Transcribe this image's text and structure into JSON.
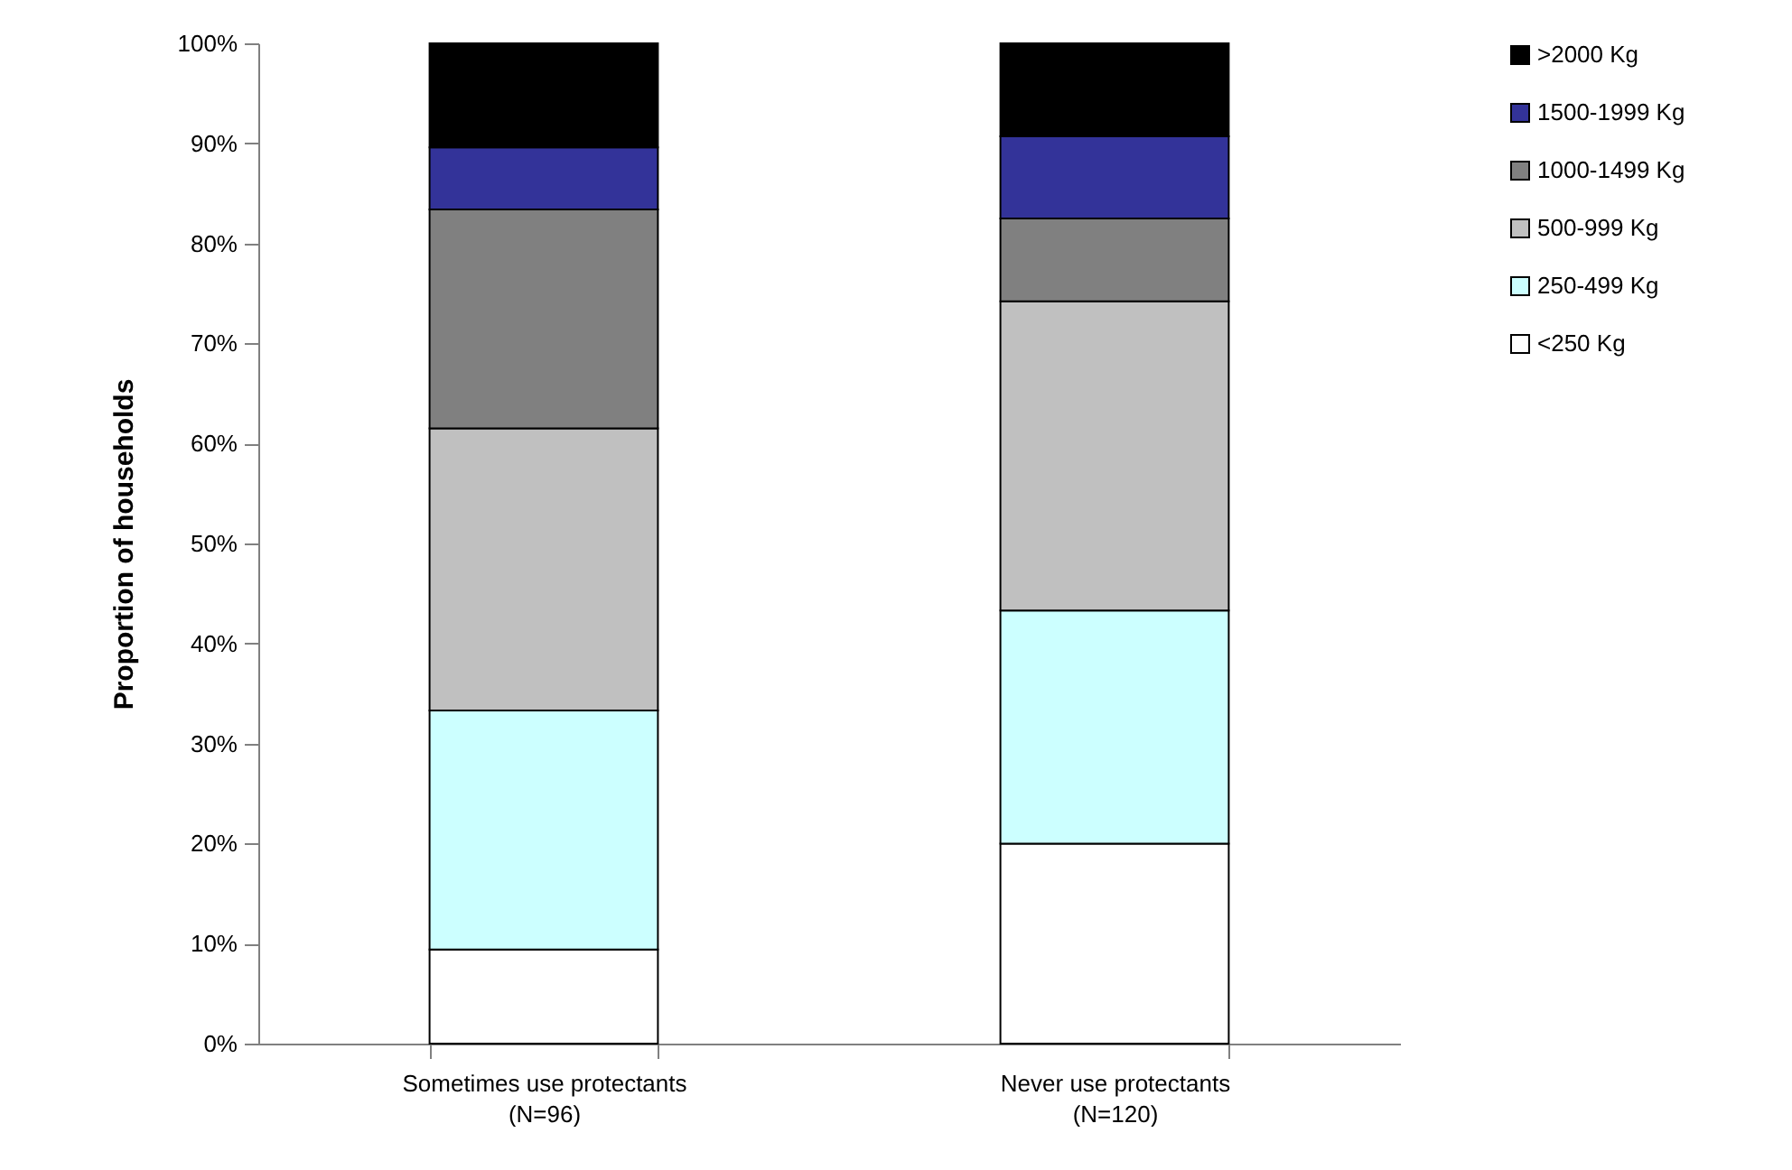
{
  "chart_data": {
    "type": "bar",
    "stacked": true,
    "ylabel": "Proportion of households",
    "categories": [
      "Sometimes use protectants\n(N=96)",
      "Never use protectants\n(N=120)"
    ],
    "series": [
      {
        "name": "<250 Kg",
        "color": "#ffffff",
        "values": [
          9.4,
          20.0
        ]
      },
      {
        "name": "250-499 Kg",
        "color": "#ccffff",
        "values": [
          23.9,
          23.3
        ]
      },
      {
        "name": "500-999 Kg",
        "color": "#c0c0c0",
        "values": [
          28.2,
          30.9
        ]
      },
      {
        "name": "1000-1499 Kg",
        "color": "#808080",
        "values": [
          21.9,
          8.3
        ]
      },
      {
        "name": "1500-1999 Kg",
        "color": "#333399",
        "values": [
          6.2,
          8.2
        ]
      },
      {
        "name": ">2000 Kg",
        "color": "#000000",
        "values": [
          10.4,
          9.3
        ]
      }
    ],
    "ylim": [
      0,
      100
    ],
    "yticks": [
      {
        "value": 0,
        "label": "0%"
      },
      {
        "value": 10,
        "label": "10%"
      },
      {
        "value": 20,
        "label": "20%"
      },
      {
        "value": 30,
        "label": "30%"
      },
      {
        "value": 40,
        "label": "40%"
      },
      {
        "value": 50,
        "label": "50%"
      },
      {
        "value": 60,
        "label": "60%"
      },
      {
        "value": 70,
        "label": "70%"
      },
      {
        "value": 80,
        "label": "80%"
      },
      {
        "value": 90,
        "label": "90%"
      },
      {
        "value": 100,
        "label": "100%"
      }
    ],
    "grid": false,
    "legend": "right"
  }
}
